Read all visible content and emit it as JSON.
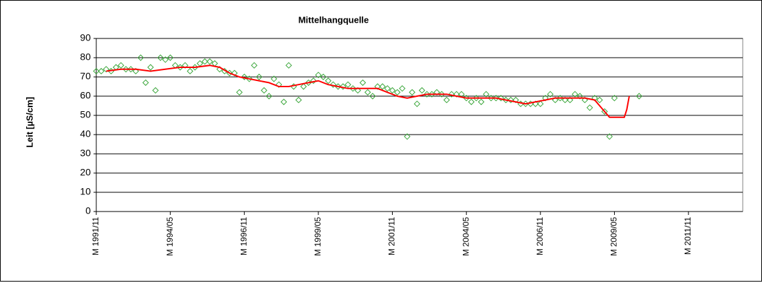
{
  "chart_data": {
    "type": "scatter",
    "title": "Mittelhangquelle",
    "y_label": "Leit [µS/cm]",
    "ylim": [
      0,
      90
    ],
    "yticks": [
      0,
      10,
      20,
      30,
      40,
      50,
      60,
      70,
      80,
      90
    ],
    "grid": true,
    "xlim": [
      "1991-11",
      "2013-09"
    ],
    "xticks": [
      {
        "value": "1991-11",
        "label": "M 1991/11"
      },
      {
        "value": "1994-05",
        "label": "M 1994/05"
      },
      {
        "value": "1996-11",
        "label": "M 1996/11"
      },
      {
        "value": "1999-05",
        "label": "M 1999/05"
      },
      {
        "value": "2001-11",
        "label": "M 2001/11"
      },
      {
        "value": "2004-05",
        "label": "M 2004/05"
      },
      {
        "value": "2006-11",
        "label": "M 2006/11"
      },
      {
        "value": "2009-05",
        "label": "M 2009/05"
      },
      {
        "value": "2011-11",
        "label": "M 2011/11"
      }
    ],
    "series": [
      {
        "type": "scatter",
        "color": "#3aa63a",
        "x": [
          "1991-11",
          "1992-01",
          "1992-03",
          "1992-05",
          "1992-07",
          "1992-09",
          "1992-11",
          "1993-01",
          "1993-03",
          "1993-05",
          "1993-07",
          "1993-09",
          "1993-11",
          "1994-01",
          "1994-03",
          "1994-05",
          "1994-07",
          "1994-09",
          "1994-11",
          "1995-01",
          "1995-03",
          "1995-05",
          "1995-07",
          "1995-09",
          "1995-11",
          "1996-01",
          "1996-03",
          "1996-05",
          "1996-07",
          "1996-09",
          "1996-11",
          "1997-01",
          "1997-03",
          "1997-05",
          "1997-07",
          "1997-09",
          "1997-11",
          "1998-01",
          "1998-03",
          "1998-05",
          "1998-07",
          "1998-09",
          "1998-11",
          "1999-01",
          "1999-03",
          "1999-05",
          "1999-07",
          "1999-09",
          "1999-11",
          "2000-01",
          "2000-03",
          "2000-05",
          "2000-07",
          "2000-09",
          "2000-11",
          "2001-01",
          "2001-03",
          "2001-05",
          "2001-07",
          "2001-09",
          "2001-11",
          "2002-01",
          "2002-03",
          "2002-05",
          "2002-07",
          "2002-09",
          "2002-11",
          "2003-01",
          "2003-03",
          "2003-05",
          "2003-07",
          "2003-09",
          "2003-11",
          "2004-01",
          "2004-03",
          "2004-05",
          "2004-07",
          "2004-09",
          "2004-11",
          "2005-01",
          "2005-03",
          "2005-05",
          "2005-07",
          "2005-09",
          "2005-11",
          "2006-01",
          "2006-03",
          "2006-05",
          "2006-07",
          "2006-09",
          "2006-11",
          "2007-01",
          "2007-03",
          "2007-05",
          "2007-07",
          "2007-09",
          "2007-11",
          "2008-01",
          "2008-03",
          "2008-05",
          "2008-07",
          "2008-09",
          "2008-11",
          "2009-01",
          "2009-03",
          "2009-05",
          "2010-03"
        ],
        "values": [
          73,
          73,
          74,
          73,
          75,
          76,
          74,
          74,
          73,
          80,
          67,
          75,
          63,
          80,
          79,
          80,
          76,
          75,
          76,
          73,
          75,
          77,
          78,
          78,
          77,
          74,
          73,
          72,
          72,
          62,
          70,
          69,
          76,
          70,
          63,
          60,
          69,
          66,
          57,
          76,
          65,
          58,
          65,
          67,
          68,
          71,
          70,
          68,
          66,
          65,
          65,
          66,
          64,
          63,
          67,
          62,
          60,
          65,
          65,
          64,
          63,
          62,
          64,
          39,
          62,
          56,
          63,
          61,
          61,
          62,
          61,
          58,
          61,
          61,
          61,
          59,
          57,
          59,
          57,
          61,
          59,
          59,
          59,
          58,
          58,
          58,
          56,
          56,
          56,
          56,
          56,
          59,
          61,
          58,
          59,
          58,
          58,
          61,
          60,
          58,
          54,
          59,
          58,
          52,
          39,
          59,
          60
        ]
      },
      {
        "type": "line",
        "color": "#ff0000",
        "x": [
          "1992-03",
          "1992-09",
          "1993-03",
          "1993-09",
          "1994-03",
          "1994-09",
          "1995-03",
          "1995-09",
          "1996-01",
          "1996-05",
          "1996-09",
          "1997-01",
          "1997-05",
          "1997-09",
          "1998-01",
          "1998-05",
          "1998-09",
          "1999-01",
          "1999-05",
          "1999-09",
          "2000-01",
          "2000-05",
          "2000-09",
          "2001-01",
          "2001-05",
          "2001-09",
          "2002-01",
          "2002-05",
          "2002-09",
          "2003-01",
          "2003-05",
          "2003-09",
          "2004-01",
          "2004-05",
          "2004-09",
          "2005-01",
          "2005-05",
          "2005-09",
          "2006-01",
          "2006-05",
          "2006-09",
          "2007-01",
          "2007-05",
          "2007-09",
          "2008-01",
          "2008-05",
          "2008-09",
          "2008-11",
          "2009-01",
          "2009-03",
          "2009-07",
          "2009-09",
          "2009-10",
          "2009-11"
        ],
        "values": [
          73,
          74,
          74,
          73,
          74,
          75,
          75,
          76,
          75,
          72,
          70,
          69,
          68,
          67,
          65,
          65,
          66,
          67,
          68,
          66,
          65,
          64,
          64,
          64,
          64,
          62,
          60,
          59,
          60,
          61,
          61,
          61,
          60,
          59,
          59,
          59,
          59,
          58,
          57,
          56,
          57,
          58,
          59,
          59,
          59,
          59,
          58,
          55,
          52,
          49,
          49,
          49,
          53,
          60
        ]
      }
    ]
  }
}
